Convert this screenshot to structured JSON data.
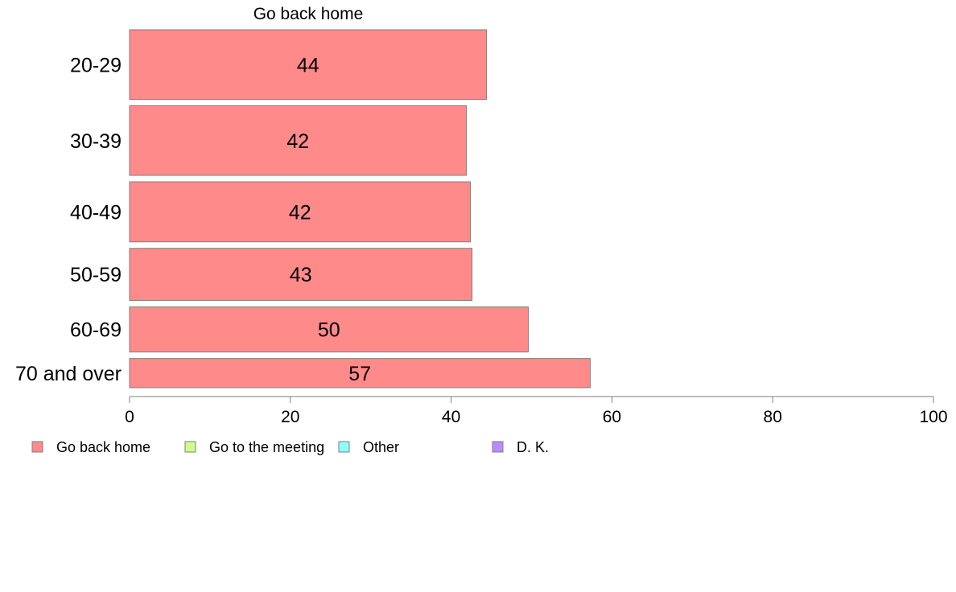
{
  "chart_data": {
    "type": "bar",
    "orientation": "horizontal",
    "title": "Go back home",
    "categories": [
      "20-29",
      "30-39",
      "40-49",
      "50-59",
      "60-69",
      "70 and over"
    ],
    "series": [
      {
        "name": "Go back home",
        "values": [
          44,
          42,
          42,
          43,
          50,
          57
        ],
        "labels": [
          "44",
          "42",
          "42",
          "43",
          "50",
          "57"
        ],
        "true_values": [
          44.4,
          41.9,
          42.4,
          42.6,
          49.6,
          57.3
        ],
        "weights": [
          88,
          88,
          76,
          66,
          57,
          37
        ]
      }
    ],
    "xlim": [
      0,
      100
    ],
    "xticks": [
      "0",
      "20",
      "40",
      "60",
      "80",
      "100"
    ],
    "xtick_values": [
      0,
      20,
      40,
      60,
      80,
      100
    ],
    "grid": false,
    "legend": {
      "position": "bottom-left",
      "items": [
        {
          "label": "Go back home",
          "color": "#ff8a8a"
        },
        {
          "label": "Go to the meeting",
          "color": "#ccff8a"
        },
        {
          "label": "Other",
          "color": "#8affff"
        },
        {
          "label": "D. K.",
          "color": "#b88aff"
        }
      ]
    },
    "colors": {
      "bar": "#ff8a8a",
      "border": "#7f7f7f"
    }
  }
}
